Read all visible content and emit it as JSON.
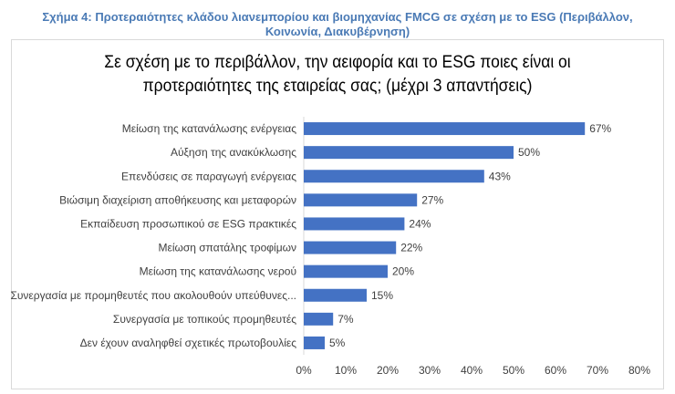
{
  "caption_line1": "Σχήμα 4: Προτεραιότητες κλάδου λιανεμπορίου και βιομηχανίας FMCG σε σχέση με το ESG (Περιβάλλον,",
  "caption_line2": "Κοινωνία, Διακυβέρνηση)",
  "chart_data": {
    "type": "bar",
    "orientation": "horizontal",
    "title_line1": "Σε σχέση με το περιβάλλον, την αειφορία και το ESG ποιες είναι οι",
    "title_line2": "προτεραιότητες της εταιρείας σας; (μέχρι 3 απαντήσεις)",
    "categories": [
      "Μείωση της κατανάλωσης ενέργειας",
      "Αύξηση της ανακύκλωσης",
      "Επενδύσεις σε παραγωγή ενέργειας",
      "Βιώσιμη διαχείριση αποθήκευσης και μεταφορών",
      "Εκπαίδευση προσωπικού σε ESG πρακτικές",
      "Μείωση σπατάλης τροφίμων",
      "Μείωση της κατανάλωσης νερού",
      "Συνεργασία με προμηθευτές που ακολουθούν υπεύθυνες...",
      "Συνεργασία με τοπικούς προμηθευτές",
      "Δεν έχουν αναληφθεί σχετικές πρωτοβουλίες"
    ],
    "values": [
      67,
      50,
      43,
      27,
      24,
      22,
      20,
      15,
      7,
      5
    ],
    "value_labels": [
      "67%",
      "50%",
      "43%",
      "27%",
      "24%",
      "22%",
      "20%",
      "15%",
      "7%",
      "5%"
    ],
    "xlim": [
      0,
      80
    ],
    "xticks": [
      "0%",
      "10%",
      "20%",
      "30%",
      "40%",
      "50%",
      "60%",
      "70%",
      "80%"
    ],
    "grid": false,
    "bar_color": "#4472c4"
  }
}
